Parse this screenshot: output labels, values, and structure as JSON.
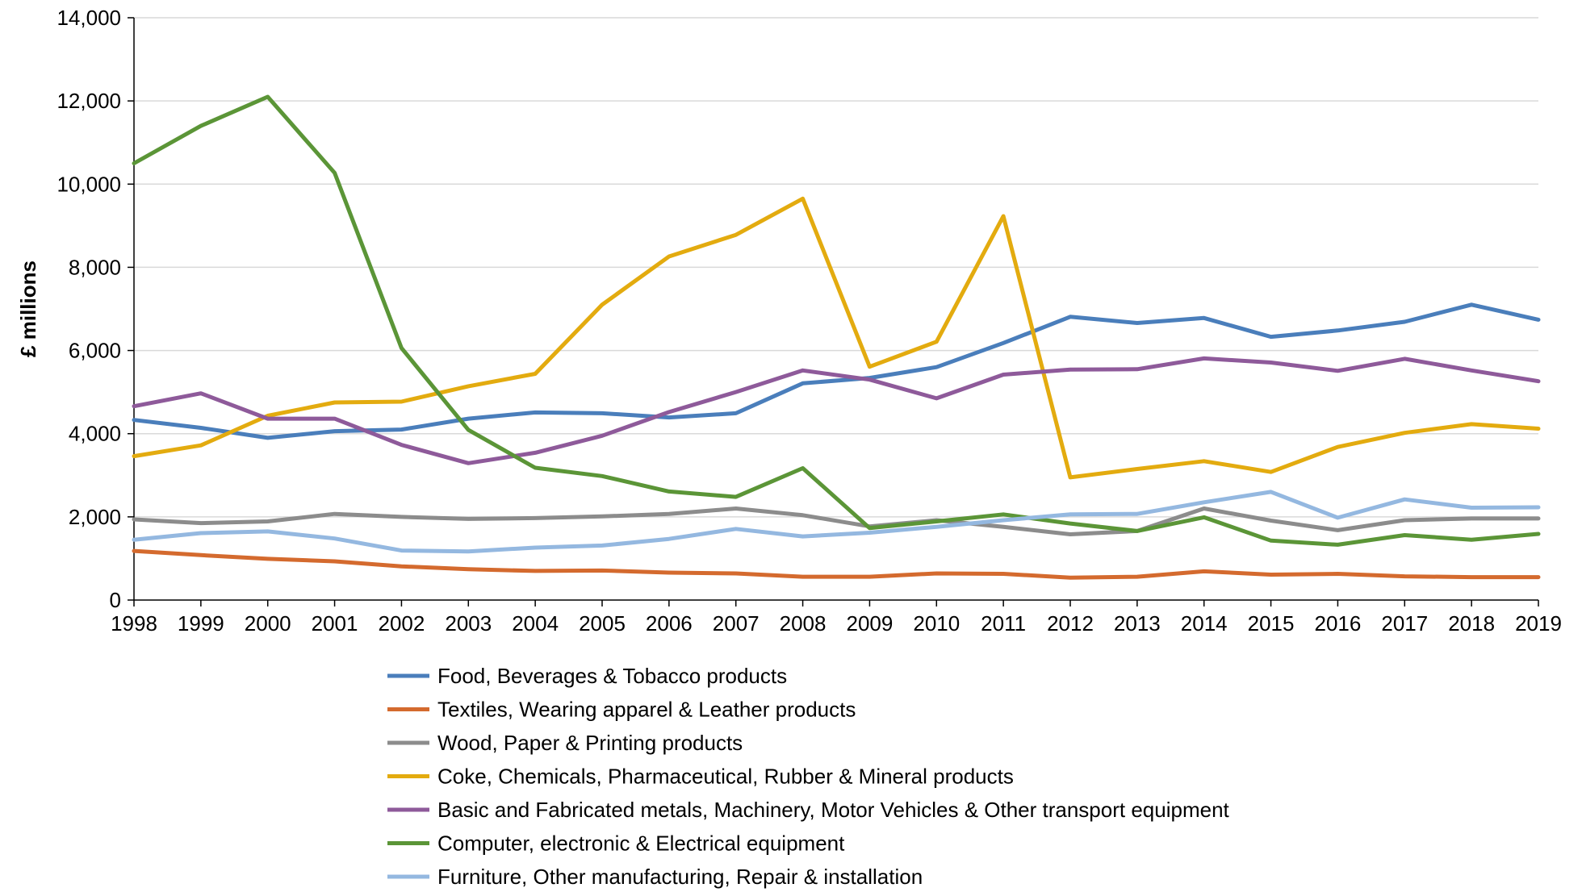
{
  "chart_data": {
    "type": "line",
    "ylabel": "£ millions",
    "xlabel": "",
    "ylim": [
      0,
      14000
    ],
    "yticks": [
      0,
      2000,
      4000,
      6000,
      8000,
      10000,
      12000,
      14000
    ],
    "ytick_labels": [
      "0",
      "2,000",
      "4,000",
      "6,000",
      "8,000",
      "10,000",
      "12,000",
      "14,000"
    ],
    "x": [
      "1998",
      "1999",
      "2000",
      "2001",
      "2002",
      "2003",
      "2004",
      "2005",
      "2006",
      "2007",
      "2008",
      "2009",
      "2010",
      "2011",
      "2012",
      "2013",
      "2014",
      "2015",
      "2016",
      "2017",
      "2018",
      "2019"
    ],
    "grid": true,
    "legend_position": "bottom",
    "series": [
      {
        "name": "Food, Beverages & Tobacco products",
        "color": "#4a7ebb",
        "values": [
          4330,
          4140,
          3900,
          4060,
          4100,
          4360,
          4510,
          4490,
          4390,
          4490,
          5210,
          5340,
          5600,
          6180,
          6810,
          6660,
          6780,
          6330,
          6480,
          6690,
          7100,
          6740
        ]
      },
      {
        "name": "Textiles, Wearing apparel & Leather products",
        "color": "#d46a2e",
        "values": [
          1180,
          1080,
          990,
          930,
          810,
          740,
          700,
          710,
          660,
          640,
          560,
          560,
          640,
          630,
          540,
          560,
          690,
          610,
          630,
          570,
          550,
          550
        ]
      },
      {
        "name": "Wood, Paper & Printing products",
        "color": "#8c8c8c",
        "values": [
          1940,
          1850,
          1890,
          2070,
          2000,
          1950,
          1970,
          2010,
          2070,
          2200,
          2040,
          1770,
          1920,
          1760,
          1580,
          1660,
          2200,
          1910,
          1680,
          1920,
          1960,
          1960
        ]
      },
      {
        "name": "Coke, Chemicals, Pharmaceutical, Rubber & Mineral products",
        "color": "#e3ab0f",
        "values": [
          3460,
          3720,
          4430,
          4750,
          4770,
          5140,
          5440,
          7100,
          8260,
          8780,
          9650,
          5610,
          6210,
          9230,
          2950,
          3150,
          3340,
          3080,
          3680,
          4020,
          4230,
          4120
        ]
      },
      {
        "name": "Basic and Fabricated metals, Machinery, Motor Vehicles & Other transport equipment",
        "color": "#8e5a9a",
        "values": [
          4660,
          4970,
          4360,
          4360,
          3730,
          3290,
          3540,
          3950,
          4520,
          5000,
          5520,
          5300,
          4850,
          5420,
          5540,
          5550,
          5810,
          5710,
          5510,
          5800,
          5520,
          5260
        ]
      },
      {
        "name": "Computer, electronic & Electrical equipment",
        "color": "#5b9537",
        "values": [
          10500,
          11400,
          12100,
          10270,
          6060,
          4090,
          3180,
          2980,
          2610,
          2480,
          3170,
          1730,
          1890,
          2060,
          1840,
          1660,
          1990,
          1430,
          1330,
          1560,
          1450,
          1590
        ]
      },
      {
        "name": "Furniture, Other manufacturing, Repair & installation",
        "color": "#94b8e0",
        "values": [
          1450,
          1610,
          1650,
          1480,
          1190,
          1170,
          1260,
          1310,
          1470,
          1710,
          1530,
          1620,
          1760,
          1920,
          2060,
          2070,
          2350,
          2600,
          1980,
          2420,
          2220,
          2230
        ]
      }
    ]
  }
}
